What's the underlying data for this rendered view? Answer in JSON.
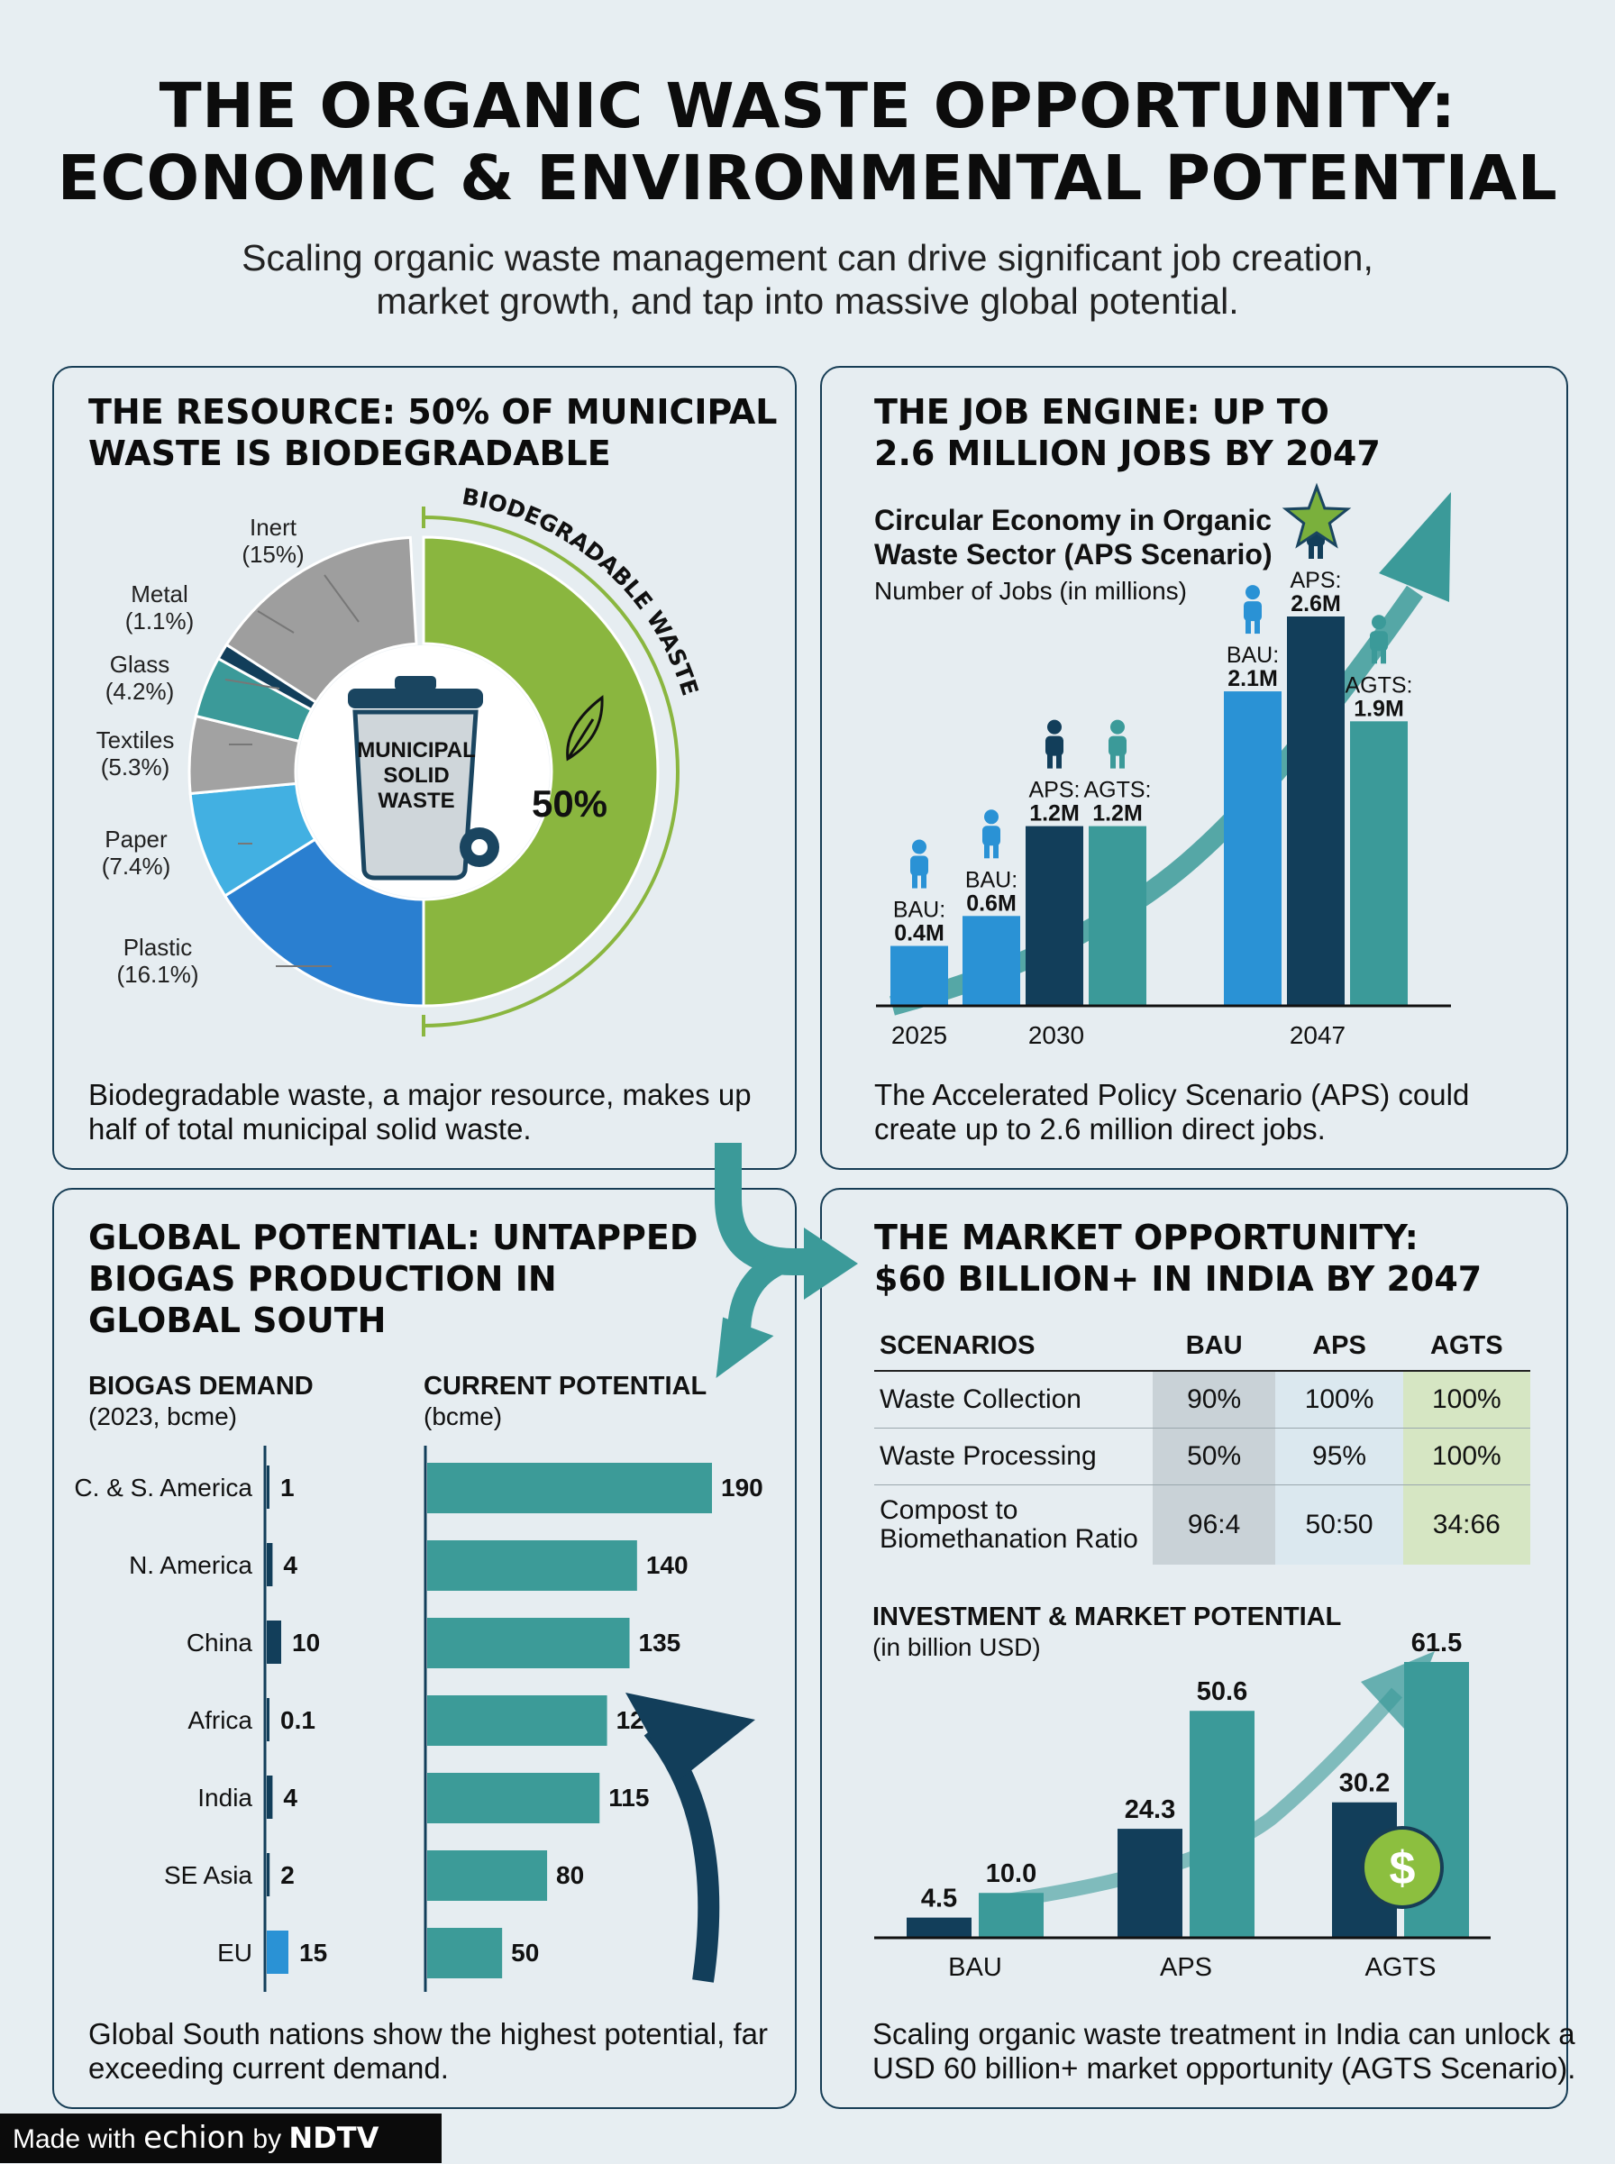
{
  "header": {
    "title_line1": "THE ORGANIC WASTE OPPORTUNITY:",
    "title_line2": "ECONOMIC & ENVIRONMENTAL POTENTIAL",
    "subtitle_line1": "Scaling organic waste management can drive significant job creation,",
    "subtitle_line2": "market growth, and tap into massive global potential."
  },
  "colors": {
    "green": "#8ab63f",
    "gray": "#9e9e9e",
    "navy": "#123e5a",
    "teal": "#3b9a99",
    "blue": "#2a92d5",
    "light_blue": "#42b0e2",
    "mid_blue": "#2b86d6",
    "teal_bar": "#3c9b98"
  },
  "panels": {
    "resource": {
      "title_line1": "THE RESOURCE: 50% OF MUNICIPAL",
      "title_line2": "WASTE IS BIODEGRADABLE",
      "caption_line1": "Biodegradable waste, a major resource, makes up",
      "caption_line2": "half of total municipal solid waste.",
      "bin_label_line1": "MUNICIPAL",
      "bin_label_line2": "SOLID",
      "bin_label_line3": "WASTE",
      "center_value": "50%",
      "arc_label": "BIODEGRADABLE WASTE",
      "leaf_icon": "leaf-icon",
      "bin_icon": "trash-bin-icon"
    },
    "jobs": {
      "title_line1": "THE JOB ENGINE: UP TO",
      "title_line2": "2.6 MILLION JOBS BY 2047",
      "chart_title_line1": "Circular Economy in Organic",
      "chart_title_line2": "Waste Sector (APS Scenario)",
      "chart_subtitle": "Number of Jobs (in millions)",
      "caption_line1": "The Accelerated Policy Scenario (APS) could",
      "caption_line2": "create up to 2.6 million direct jobs.",
      "person_icon": "person-icon",
      "star_icon": "star-icon"
    },
    "global": {
      "title_line1": "GLOBAL POTENTIAL: UNTAPPED",
      "title_line2": "BIOGAS PRODUCTION IN",
      "title_line3": "GLOBAL SOUTH",
      "left_header": "BIOGAS DEMAND",
      "left_sub": "(2023, bcme)",
      "right_header": "CURRENT POTENTIAL",
      "right_sub": "(bcme)",
      "caption_line1": "Global South nations show the highest potential, far",
      "caption_line2": "exceeding current demand."
    },
    "market": {
      "title_line1": "THE MARKET OPPORTUNITY:",
      "title_line2": "$60 BILLION+ IN INDIA BY 2047",
      "table": {
        "headers": [
          "SCENARIOS",
          "BAU",
          "APS",
          "AGTS"
        ],
        "rows": [
          {
            "label": "Waste Collection",
            "bau": "90%",
            "aps": "100%",
            "agts": "100%"
          },
          {
            "label": "Waste Processing",
            "bau": "50%",
            "aps": "95%",
            "agts": "100%"
          },
          {
            "label": "Compost to Biomethanation Ratio",
            "label_line1": "Compost to",
            "label_line2": "Biomethanation Ratio",
            "bau": "96:4",
            "aps": "50:50",
            "agts": "34:66"
          }
        ]
      },
      "invest_title": "INVESTMENT & MARKET POTENTIAL",
      "invest_sub": "(in billion USD)",
      "caption_line1": "Scaling organic waste treatment in India can unlock a",
      "caption_line2": "USD 60 billion+ market opportunity (AGTS Scenario).",
      "dollar_icon": "dollar-coin-icon",
      "dollar_symbol": "$"
    }
  },
  "badge": {
    "made_with": "Made with",
    "echion": "echion",
    "by": "by",
    "ndtv": "NDTV"
  },
  "chart_data": [
    {
      "type": "pie",
      "title": "THE RESOURCE: 50% OF MUNICIPAL WASTE IS BIODEGRADABLE",
      "slices": [
        {
          "name": "Biodegradable",
          "value": 50,
          "color": "#8ab63f"
        },
        {
          "name": "Plastic",
          "value": 16.1,
          "label": "(16.1%)",
          "color": "#2a7fd0"
        },
        {
          "name": "Paper",
          "value": 7.4,
          "label": "(7.4%)",
          "color": "#42b0e2"
        },
        {
          "name": "Textiles",
          "value": 5.3,
          "label": "(5.3%)",
          "color": "#a2a2a2"
        },
        {
          "name": "Glass",
          "value": 4.2,
          "label": "(4.2%)",
          "color": "#3b9a99"
        },
        {
          "name": "Metal",
          "value": 1.1,
          "label": "(1.1%)",
          "color": "#123e5a"
        },
        {
          "name": "Inert",
          "value": 15,
          "label": "(15%)",
          "color": "#9e9e9e"
        }
      ]
    },
    {
      "type": "bar",
      "title": "Circular Economy in Organic Waste Sector (APS Scenario)",
      "ylabel": "Number of Jobs (in millions)",
      "categories": [
        "2025",
        "2030",
        "2047"
      ],
      "bars": [
        {
          "year": "2025",
          "scenario": "BAU",
          "value": 0.4,
          "label": "0.4M",
          "color": "#2a92d5"
        },
        {
          "year": "2030",
          "scenario": "BAU",
          "value": 0.6,
          "label": "0.6M",
          "color": "#2a92d5"
        },
        {
          "year": "2030",
          "scenario": "APS",
          "value": 1.2,
          "label": "1.2M",
          "color": "#123e5a"
        },
        {
          "year": "2030",
          "scenario": "AGTS",
          "value": 1.2,
          "label": "1.2M",
          "color": "#3b9a99"
        },
        {
          "year": "2047",
          "scenario": "BAU",
          "value": 2.1,
          "label": "2.1M",
          "color": "#2a92d5"
        },
        {
          "year": "2047",
          "scenario": "APS",
          "value": 2.6,
          "label": "2.6M",
          "color": "#123e5a"
        },
        {
          "year": "2047",
          "scenario": "AGTS",
          "value": 1.9,
          "label": "1.9M",
          "color": "#3b9a99"
        }
      ]
    },
    {
      "type": "bar",
      "orientation": "horizontal",
      "title": "BIOGAS DEMAND (2023, bcme)",
      "categories": [
        "C. & S. America",
        "N. America",
        "China",
        "Africa",
        "India",
        "SE Asia",
        "EU"
      ],
      "values": [
        1,
        4,
        10,
        0.1,
        4,
        2,
        15
      ],
      "labels": [
        "1",
        "4",
        "10",
        "0.1",
        "4",
        "2",
        "15"
      ]
    },
    {
      "type": "bar",
      "orientation": "horizontal",
      "title": "CURRENT POTENTIAL (bcme)",
      "categories": [
        "C. & S. America",
        "N. America",
        "China",
        "Africa",
        "India",
        "SE Asia",
        "EU"
      ],
      "values": [
        190,
        140,
        135,
        120,
        115,
        80,
        50
      ],
      "labels": [
        "190",
        "140",
        "135",
        "120",
        "115",
        "80",
        "50"
      ]
    },
    {
      "type": "bar",
      "title": "INVESTMENT & MARKET POTENTIAL (in billion USD)",
      "categories": [
        "BAU",
        "APS",
        "AGTS"
      ],
      "series": [
        {
          "values": [
            4.5,
            24.3,
            30.2
          ],
          "labels": [
            "4.5",
            "24.3",
            "30.2"
          ],
          "color": "#123e5a"
        },
        {
          "values": [
            10.0,
            50.6,
            61.5
          ],
          "labels": [
            "10.0",
            "50.6",
            "61.5"
          ],
          "color": "#3b9a99"
        }
      ]
    }
  ]
}
